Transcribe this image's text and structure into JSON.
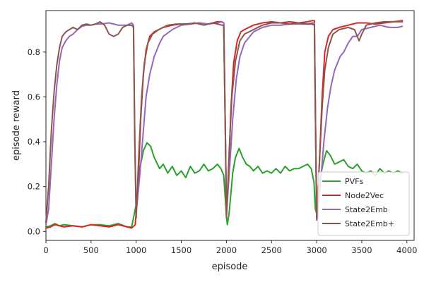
{
  "chart_data": {
    "type": "line",
    "xlabel": "episode",
    "ylabel": "episode reward",
    "xlim": [
      0,
      4080
    ],
    "ylim": [
      -0.04,
      0.985
    ],
    "xticks": [
      0,
      500,
      1000,
      1500,
      2000,
      2500,
      3000,
      3500,
      4000
    ],
    "yticks": [
      0.0,
      0.2,
      0.4,
      0.6,
      0.8
    ],
    "ytick_labels": [
      "0.0",
      "0.2",
      "0.4",
      "0.6",
      "0.8"
    ],
    "grid": false,
    "legend_position": "lower-right",
    "series": [
      {
        "name": "PVFs",
        "color": "#2ca02c",
        "points": [
          [
            0,
            0.02
          ],
          [
            50,
            0.025
          ],
          [
            100,
            0.035
          ],
          [
            150,
            0.025
          ],
          [
            200,
            0.03
          ],
          [
            300,
            0.025
          ],
          [
            400,
            0.02
          ],
          [
            500,
            0.03
          ],
          [
            600,
            0.03
          ],
          [
            700,
            0.025
          ],
          [
            800,
            0.035
          ],
          [
            900,
            0.02
          ],
          [
            950,
            0.02
          ],
          [
            970,
            0.06
          ],
          [
            1000,
            0.12
          ],
          [
            1040,
            0.28
          ],
          [
            1080,
            0.36
          ],
          [
            1120,
            0.395
          ],
          [
            1160,
            0.38
          ],
          [
            1200,
            0.33
          ],
          [
            1260,
            0.28
          ],
          [
            1300,
            0.3
          ],
          [
            1350,
            0.26
          ],
          [
            1400,
            0.29
          ],
          [
            1450,
            0.25
          ],
          [
            1500,
            0.27
          ],
          [
            1550,
            0.24
          ],
          [
            1600,
            0.29
          ],
          [
            1650,
            0.26
          ],
          [
            1700,
            0.27
          ],
          [
            1750,
            0.3
          ],
          [
            1800,
            0.27
          ],
          [
            1850,
            0.28
          ],
          [
            1900,
            0.3
          ],
          [
            1940,
            0.28
          ],
          [
            1970,
            0.25
          ],
          [
            2000,
            0.07
          ],
          [
            2010,
            0.03
          ],
          [
            2030,
            0.08
          ],
          [
            2070,
            0.26
          ],
          [
            2100,
            0.33
          ],
          [
            2140,
            0.37
          ],
          [
            2180,
            0.33
          ],
          [
            2220,
            0.3
          ],
          [
            2260,
            0.29
          ],
          [
            2300,
            0.27
          ],
          [
            2350,
            0.29
          ],
          [
            2400,
            0.26
          ],
          [
            2450,
            0.27
          ],
          [
            2500,
            0.26
          ],
          [
            2550,
            0.28
          ],
          [
            2600,
            0.26
          ],
          [
            2650,
            0.29
          ],
          [
            2700,
            0.27
          ],
          [
            2750,
            0.28
          ],
          [
            2800,
            0.28
          ],
          [
            2850,
            0.29
          ],
          [
            2900,
            0.3
          ],
          [
            2940,
            0.28
          ],
          [
            2970,
            0.22
          ],
          [
            2985,
            0.1
          ],
          [
            3000,
            0.08
          ],
          [
            3030,
            0.22
          ],
          [
            3070,
            0.3
          ],
          [
            3110,
            0.36
          ],
          [
            3150,
            0.34
          ],
          [
            3200,
            0.3
          ],
          [
            3250,
            0.31
          ],
          [
            3300,
            0.32
          ],
          [
            3350,
            0.29
          ],
          [
            3400,
            0.28
          ],
          [
            3450,
            0.3
          ],
          [
            3500,
            0.27
          ],
          [
            3550,
            0.26
          ],
          [
            3600,
            0.27
          ],
          [
            3650,
            0.25
          ],
          [
            3700,
            0.28
          ],
          [
            3750,
            0.26
          ],
          [
            3800,
            0.27
          ],
          [
            3850,
            0.26
          ],
          [
            3900,
            0.27
          ],
          [
            3950,
            0.26
          ]
        ]
      },
      {
        "name": "Node2Vec",
        "color": "#d62728",
        "points": [
          [
            0,
            0.015
          ],
          [
            50,
            0.02
          ],
          [
            100,
            0.03
          ],
          [
            150,
            0.025
          ],
          [
            200,
            0.02
          ],
          [
            300,
            0.025
          ],
          [
            400,
            0.02
          ],
          [
            500,
            0.03
          ],
          [
            600,
            0.025
          ],
          [
            700,
            0.02
          ],
          [
            800,
            0.03
          ],
          [
            900,
            0.02
          ],
          [
            950,
            0.015
          ],
          [
            990,
            0.03
          ],
          [
            1020,
            0.2
          ],
          [
            1050,
            0.5
          ],
          [
            1080,
            0.7
          ],
          [
            1110,
            0.81
          ],
          [
            1150,
            0.87
          ],
          [
            1200,
            0.89
          ],
          [
            1300,
            0.91
          ],
          [
            1400,
            0.92
          ],
          [
            1500,
            0.925
          ],
          [
            1600,
            0.925
          ],
          [
            1700,
            0.93
          ],
          [
            1800,
            0.925
          ],
          [
            1900,
            0.935
          ],
          [
            1950,
            0.935
          ],
          [
            1970,
            0.93
          ],
          [
            1990,
            0.4
          ],
          [
            2000,
            0.1
          ],
          [
            2020,
            0.2
          ],
          [
            2050,
            0.55
          ],
          [
            2080,
            0.75
          ],
          [
            2120,
            0.85
          ],
          [
            2160,
            0.89
          ],
          [
            2200,
            0.9
          ],
          [
            2300,
            0.92
          ],
          [
            2400,
            0.93
          ],
          [
            2500,
            0.935
          ],
          [
            2600,
            0.93
          ],
          [
            2700,
            0.935
          ],
          [
            2800,
            0.93
          ],
          [
            2900,
            0.935
          ],
          [
            2950,
            0.94
          ],
          [
            2975,
            0.94
          ],
          [
            2990,
            0.4
          ],
          [
            3000,
            0.08
          ],
          [
            3030,
            0.3
          ],
          [
            3060,
            0.6
          ],
          [
            3090,
            0.8
          ],
          [
            3130,
            0.87
          ],
          [
            3180,
            0.9
          ],
          [
            3250,
            0.91
          ],
          [
            3350,
            0.92
          ],
          [
            3450,
            0.93
          ],
          [
            3550,
            0.93
          ],
          [
            3650,
            0.925
          ],
          [
            3750,
            0.93
          ],
          [
            3850,
            0.935
          ],
          [
            3950,
            0.94
          ]
        ]
      },
      {
        "name": "State2Emb",
        "color": "#9467bd",
        "points": [
          [
            0,
            0.03
          ],
          [
            30,
            0.1
          ],
          [
            60,
            0.3
          ],
          [
            90,
            0.5
          ],
          [
            120,
            0.65
          ],
          [
            150,
            0.76
          ],
          [
            180,
            0.82
          ],
          [
            220,
            0.85
          ],
          [
            260,
            0.87
          ],
          [
            300,
            0.88
          ],
          [
            350,
            0.9
          ],
          [
            400,
            0.915
          ],
          [
            450,
            0.92
          ],
          [
            500,
            0.92
          ],
          [
            550,
            0.925
          ],
          [
            600,
            0.925
          ],
          [
            700,
            0.93
          ],
          [
            800,
            0.92
          ],
          [
            850,
            0.92
          ],
          [
            900,
            0.92
          ],
          [
            950,
            0.93
          ],
          [
            970,
            0.92
          ],
          [
            985,
            0.4
          ],
          [
            1000,
            0.08
          ],
          [
            1040,
            0.25
          ],
          [
            1080,
            0.45
          ],
          [
            1110,
            0.6
          ],
          [
            1150,
            0.7
          ],
          [
            1200,
            0.78
          ],
          [
            1260,
            0.84
          ],
          [
            1300,
            0.87
          ],
          [
            1400,
            0.9
          ],
          [
            1500,
            0.92
          ],
          [
            1600,
            0.925
          ],
          [
            1700,
            0.93
          ],
          [
            1800,
            0.925
          ],
          [
            1900,
            0.93
          ],
          [
            1950,
            0.935
          ],
          [
            1970,
            0.93
          ],
          [
            1990,
            0.4
          ],
          [
            2000,
            0.07
          ],
          [
            2030,
            0.25
          ],
          [
            2070,
            0.5
          ],
          [
            2110,
            0.68
          ],
          [
            2150,
            0.78
          ],
          [
            2200,
            0.84
          ],
          [
            2300,
            0.89
          ],
          [
            2400,
            0.91
          ],
          [
            2500,
            0.92
          ],
          [
            2600,
            0.92
          ],
          [
            2700,
            0.925
          ],
          [
            2800,
            0.925
          ],
          [
            2900,
            0.925
          ],
          [
            2950,
            0.93
          ],
          [
            2975,
            0.93
          ],
          [
            2990,
            0.4
          ],
          [
            3000,
            0.05
          ],
          [
            3040,
            0.2
          ],
          [
            3080,
            0.4
          ],
          [
            3120,
            0.55
          ],
          [
            3160,
            0.65
          ],
          [
            3200,
            0.72
          ],
          [
            3260,
            0.78
          ],
          [
            3300,
            0.8
          ],
          [
            3350,
            0.84
          ],
          [
            3400,
            0.87
          ],
          [
            3450,
            0.87
          ],
          [
            3500,
            0.9
          ],
          [
            3600,
            0.91
          ],
          [
            3700,
            0.92
          ],
          [
            3800,
            0.91
          ],
          [
            3900,
            0.91
          ],
          [
            3950,
            0.915
          ]
        ]
      },
      {
        "name": "State2Emb+",
        "color": "#8c564b",
        "points": [
          [
            0,
            0.04
          ],
          [
            30,
            0.2
          ],
          [
            60,
            0.45
          ],
          [
            90,
            0.62
          ],
          [
            120,
            0.74
          ],
          [
            150,
            0.82
          ],
          [
            180,
            0.87
          ],
          [
            220,
            0.89
          ],
          [
            260,
            0.9
          ],
          [
            300,
            0.91
          ],
          [
            350,
            0.9
          ],
          [
            400,
            0.92
          ],
          [
            450,
            0.925
          ],
          [
            500,
            0.92
          ],
          [
            550,
            0.925
          ],
          [
            600,
            0.935
          ],
          [
            650,
            0.92
          ],
          [
            700,
            0.88
          ],
          [
            750,
            0.87
          ],
          [
            800,
            0.88
          ],
          [
            850,
            0.91
          ],
          [
            900,
            0.92
          ],
          [
            950,
            0.92
          ],
          [
            970,
            0.91
          ],
          [
            985,
            0.4
          ],
          [
            1000,
            0.06
          ],
          [
            1030,
            0.35
          ],
          [
            1060,
            0.6
          ],
          [
            1090,
            0.75
          ],
          [
            1130,
            0.84
          ],
          [
            1180,
            0.88
          ],
          [
            1250,
            0.9
          ],
          [
            1350,
            0.92
          ],
          [
            1450,
            0.925
          ],
          [
            1550,
            0.925
          ],
          [
            1650,
            0.93
          ],
          [
            1750,
            0.92
          ],
          [
            1850,
            0.93
          ],
          [
            1950,
            0.92
          ],
          [
            1970,
            0.92
          ],
          [
            1990,
            0.4
          ],
          [
            2000,
            0.06
          ],
          [
            2030,
            0.35
          ],
          [
            2060,
            0.6
          ],
          [
            2100,
            0.76
          ],
          [
            2150,
            0.85
          ],
          [
            2200,
            0.88
          ],
          [
            2300,
            0.9
          ],
          [
            2400,
            0.92
          ],
          [
            2500,
            0.93
          ],
          [
            2600,
            0.93
          ],
          [
            2700,
            0.925
          ],
          [
            2800,
            0.93
          ],
          [
            2900,
            0.925
          ],
          [
            2950,
            0.925
          ],
          [
            2975,
            0.92
          ],
          [
            2990,
            0.4
          ],
          [
            3000,
            0.06
          ],
          [
            3030,
            0.3
          ],
          [
            3060,
            0.55
          ],
          [
            3090,
            0.72
          ],
          [
            3130,
            0.82
          ],
          [
            3180,
            0.88
          ],
          [
            3250,
            0.9
          ],
          [
            3350,
            0.91
          ],
          [
            3420,
            0.9
          ],
          [
            3470,
            0.85
          ],
          [
            3500,
            0.88
          ],
          [
            3550,
            0.92
          ],
          [
            3650,
            0.93
          ],
          [
            3750,
            0.935
          ],
          [
            3850,
            0.935
          ],
          [
            3950,
            0.935
          ]
        ]
      }
    ]
  }
}
